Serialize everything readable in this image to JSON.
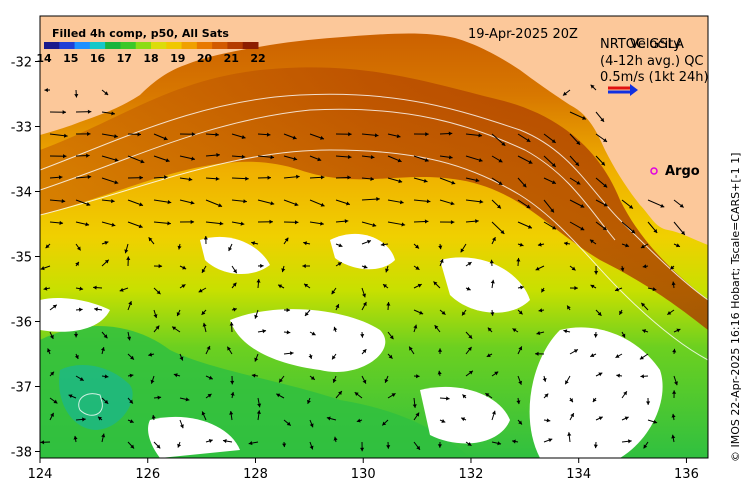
{
  "colorbar": {
    "title": "Filled 4h comp, p50, All Sats",
    "labels": [
      "14",
      "15",
      "16",
      "17",
      "18",
      "19",
      "20",
      "21",
      "22"
    ],
    "colors": [
      "#1a1a8c",
      "#1f3fd6",
      "#1e90ff",
      "#14c8c8",
      "#19b43c",
      "#3cc828",
      "#8cdc14",
      "#dcdc0a",
      "#f0c800",
      "#f0a000",
      "#e87800",
      "#d25a00",
      "#b43c00",
      "#8c1e00"
    ]
  },
  "date_label": "19-Apr-2025 20Z",
  "legend": {
    "line1": "NRTOC GSLA",
    "line2": "(4-12h avg.) QC",
    "line3": "Velocity",
    "line4": "0.5m/s (1kt 24h)",
    "arrow_colors": [
      "#e01010",
      "#1030e0"
    ]
  },
  "argo": {
    "label": "Argo",
    "color": "#e000e0",
    "lon": 135.5,
    "lat": -33.6
  },
  "credit": "© IMOS 22-Apr-2025 16:16 Hobart; Tscale=CARS+[-1 1]",
  "axes": {
    "x_ticks": [
      "124",
      "126",
      "128",
      "130",
      "132",
      "134",
      "136"
    ],
    "x_values": [
      124,
      126,
      128,
      130,
      132,
      134,
      136
    ],
    "y_ticks": [
      "-32",
      "-33",
      "-34",
      "-35",
      "-36",
      "-37",
      "-38"
    ],
    "y_values": [
      -32,
      -33,
      -34,
      -35,
      -36,
      -37,
      -38
    ],
    "lon_range": [
      124,
      136.4
    ],
    "lat_range": [
      -31.3,
      -38.1
    ]
  },
  "colors": {
    "land": "#fcc89a",
    "background": "#ffffff",
    "arrow": "#000000"
  }
}
